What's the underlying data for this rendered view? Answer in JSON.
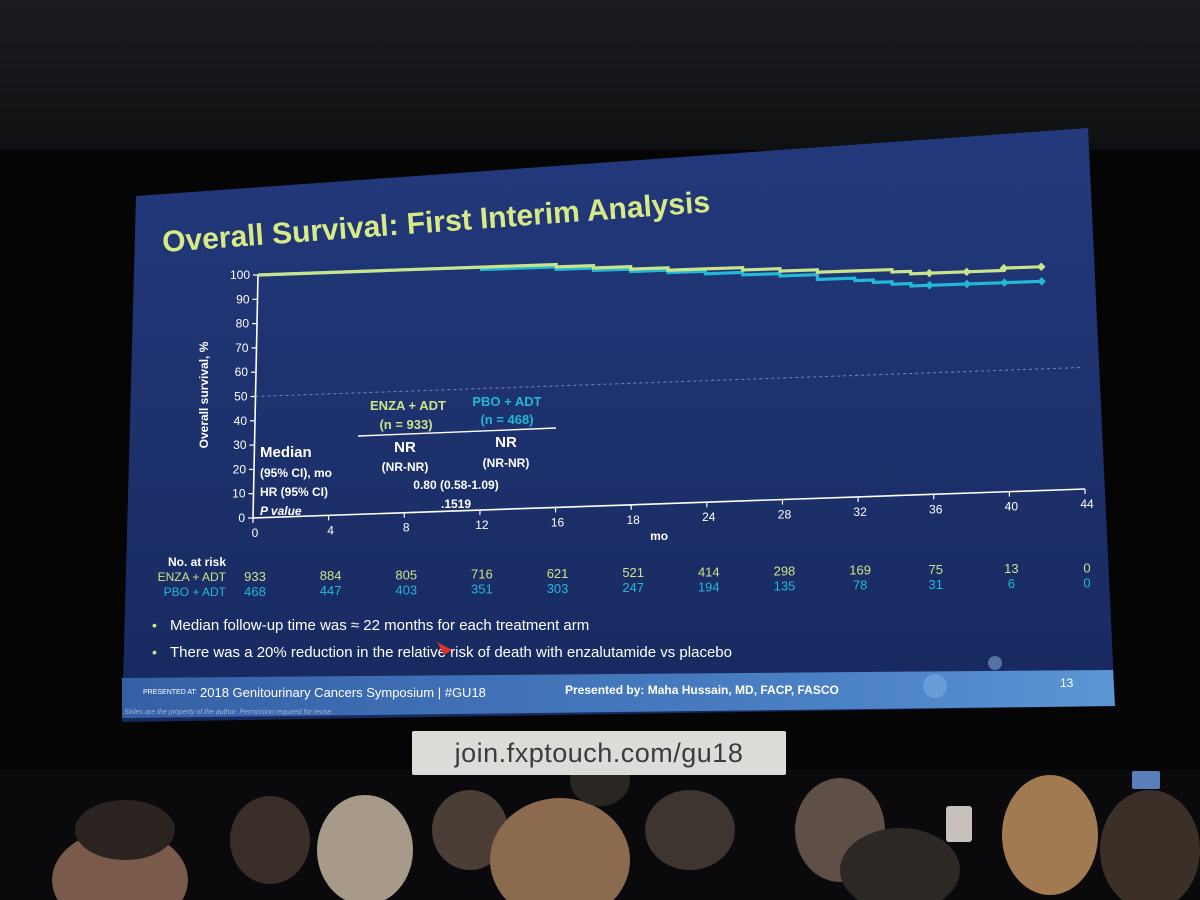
{
  "slide": {
    "title": "Overall Survival: First Interim Analysis",
    "page_number": "13",
    "footer_presented_at": "PRESENTED AT:",
    "footer_symposium": "2018 Genitourinary Cancers Symposium | #GU18",
    "footer_presenter": "Presented by: Maha Hussain, MD, FACP, FASCO",
    "footer_disclaimer": "Slides are the property of the author. Permission required for reuse.",
    "bullets": [
      "Median follow-up time was ≈ 22 months for each treatment arm",
      "There was a 20% reduction in the relative risk of death with enzalutamide vs placebo"
    ],
    "colors": {
      "background": "#1c2f6e",
      "title": "#d8ea86",
      "enza": "#c9e48a",
      "pbo": "#22b8d6",
      "text": "#ffffff"
    }
  },
  "chart_data": {
    "type": "line",
    "ylabel": "Overall survival, %",
    "xlabel": "mo",
    "ylim": [
      0,
      100
    ],
    "xlim": [
      0,
      44
    ],
    "yticks": [
      0,
      10,
      20,
      30,
      40,
      50,
      60,
      70,
      80,
      90,
      100
    ],
    "xticks": [
      0,
      4,
      8,
      12,
      16,
      18,
      24,
      28,
      32,
      36,
      40,
      44
    ],
    "reference_line_y": 50,
    "series": [
      {
        "name": "ENZA + ADT",
        "n_label": "(n = 933)",
        "color": "#c9e48a",
        "x": [
          0,
          4,
          8,
          12,
          14,
          16,
          18,
          20,
          22,
          24,
          26,
          28,
          30,
          32,
          34,
          35,
          36,
          38,
          40,
          42
        ],
        "y": [
          100,
          100,
          100,
          100,
          100,
          99,
          98,
          97,
          96,
          96,
          95,
          94,
          93,
          93,
          92,
          91,
          91,
          91,
          92,
          92
        ]
      },
      {
        "name": "PBO + ADT",
        "n_label": "(n = 468)",
        "color": "#22b8d6",
        "x": [
          0,
          4,
          8,
          12,
          14,
          16,
          18,
          20,
          22,
          24,
          26,
          28,
          30,
          32,
          33,
          34,
          35,
          36,
          38,
          40,
          42
        ],
        "y": [
          100,
          100,
          100,
          99,
          99,
          98,
          97,
          96,
          95,
          94,
          93,
          92,
          90,
          89,
          88,
          87,
          86,
          86,
          86,
          86,
          86
        ]
      }
    ],
    "summary_table": {
      "labels": [
        "Median",
        "(95% CI), mo",
        "HR (95% CI)",
        "P value"
      ],
      "enza_median": "NR",
      "enza_ci": "(NR-NR)",
      "pbo_median": "NR",
      "pbo_ci": "(NR-NR)",
      "hr": "0.80 (0.58-1.09)",
      "p_value": ".1519"
    },
    "risk_table": {
      "header": "No. at risk",
      "timepoints": [
        0,
        4,
        8,
        12,
        16,
        18,
        24,
        28,
        32,
        36,
        40,
        44
      ],
      "rows": [
        {
          "label": "ENZA + ADT",
          "values": [
            "933",
            "884",
            "805",
            "716",
            "621",
            "521",
            "414",
            "298",
            "169",
            "75",
            "13",
            "0"
          ]
        },
        {
          "label": "PBO + ADT",
          "values": [
            "468",
            "447",
            "403",
            "351",
            "303",
            "247",
            "194",
            "135",
            "78",
            "31",
            "6",
            "0"
          ]
        }
      ]
    }
  },
  "room": {
    "url_banner": "join.fxptouch.com/gu18"
  }
}
